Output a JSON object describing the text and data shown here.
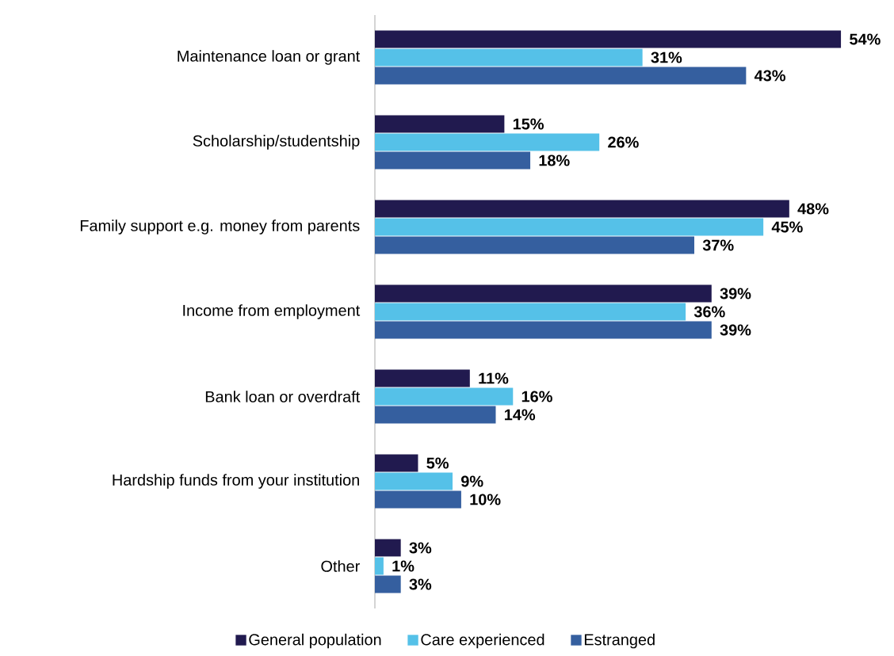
{
  "chart_data": {
    "type": "bar",
    "orientation": "horizontal",
    "categories": [
      "Maintenance loan or grant",
      "Scholarship/studentship",
      "Family support e.g. money from parents",
      "Income from employment",
      "Bank loan or overdraft",
      "Hardship funds from your institution",
      "Other"
    ],
    "series": [
      {
        "name": "General population",
        "color": "#211a4f",
        "values": [
          54,
          15,
          48,
          39,
          11,
          5,
          3
        ],
        "value_labels": [
          "54%",
          "15%",
          "48%",
          "39%",
          "11%",
          "5%",
          "3%"
        ]
      },
      {
        "name": "Care experienced",
        "color": "#55c1e8",
        "values": [
          31,
          26,
          45,
          36,
          16,
          9,
          1
        ],
        "value_labels": [
          "31%",
          "26%",
          "45%",
          "36%",
          "16%",
          "9%",
          "1%"
        ]
      },
      {
        "name": "Estranged",
        "color": "#355f9f",
        "values": [
          43,
          18,
          37,
          39,
          14,
          10,
          3
        ],
        "value_labels": [
          "43%",
          "18%",
          "37%",
          "39%",
          "14%",
          "10%",
          "3%"
        ]
      }
    ],
    "legend": "bottom"
  }
}
